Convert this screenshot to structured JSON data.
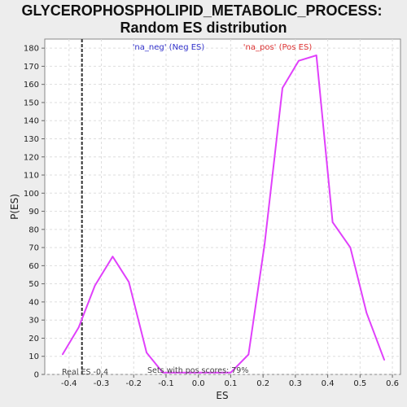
{
  "chart_data": {
    "type": "line",
    "title_line1": "GLYCEROPHOSPHOLIPID_METABOLIC_PROCESS:",
    "title_line2": "Random ES distribution",
    "xlabel": "ES",
    "ylabel": "P(ES)",
    "xlim": [
      -0.475,
      0.625
    ],
    "ylim": [
      0,
      185
    ],
    "x_ticks": [
      -0.4,
      -0.3,
      -0.2,
      -0.1,
      0.0,
      0.1,
      0.2,
      0.3,
      0.4,
      0.5,
      0.6
    ],
    "x_tick_labels": [
      "-0.4",
      "-0.3",
      "-0.2",
      "-0.1",
      "0.0",
      "0.1",
      "0.2",
      "0.3",
      "0.4",
      "0.5",
      "0.6"
    ],
    "y_ticks": [
      0,
      10,
      20,
      30,
      40,
      50,
      60,
      70,
      80,
      90,
      100,
      110,
      120,
      130,
      140,
      150,
      160,
      170,
      180
    ],
    "grid": true,
    "series": [
      {
        "color": "#e040fb",
        "x": [
          -0.42,
          -0.37,
          -0.32,
          -0.265,
          -0.215,
          -0.16,
          -0.11,
          0.1,
          0.155,
          0.205,
          0.26,
          0.31,
          0.365,
          0.415,
          0.47,
          0.52,
          0.575
        ],
        "y": [
          11,
          26,
          49,
          65,
          51,
          12,
          1,
          1,
          11,
          72,
          158,
          173,
          176,
          84,
          70,
          34,
          8
        ]
      }
    ],
    "legend": {
      "neg_label": "'na_neg' (Neg ES)",
      "neg_color": "#3333cc",
      "pos_label": "'na_pos' (Pos ES)",
      "pos_color": "#dd3333",
      "placement": "top"
    },
    "real_es": {
      "value": -0.36,
      "label": "Real ES -0.4"
    },
    "annotation": "Sets with pos scores: 79%"
  }
}
